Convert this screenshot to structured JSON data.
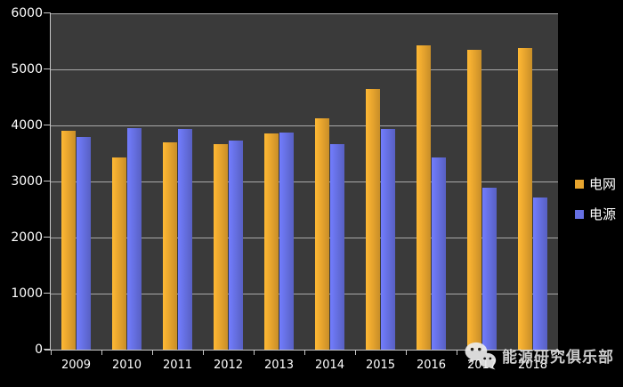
{
  "chart_data": {
    "type": "bar",
    "title": "",
    "xlabel": "",
    "ylabel": "",
    "categories": [
      "2009",
      "2010",
      "2011",
      "2012",
      "2013",
      "2014",
      "2015",
      "2016",
      "2017",
      "2018"
    ],
    "series": [
      {
        "name": "电网",
        "color": "#E8A52E",
        "values": [
          3900,
          3430,
          3700,
          3660,
          3860,
          4120,
          4650,
          5430,
          5350,
          5380
        ]
      },
      {
        "name": "电源",
        "color": "#6670E3",
        "values": [
          3800,
          3960,
          3930,
          3730,
          3870,
          3660,
          3940,
          3430,
          2890,
          2710
        ]
      }
    ],
    "ylim": [
      0,
      6000
    ],
    "yticks": [
      0,
      1000,
      2000,
      3000,
      4000,
      5000,
      6000
    ],
    "grid": true,
    "legend_position": "right",
    "colors": {
      "page_bg": "#000000",
      "plot_bg": "#3A3A3A",
      "gridline": "#BDBDBD",
      "axis_text": "#FFFFFF"
    }
  },
  "watermark": {
    "text": "能源研究俱乐部",
    "icon": "wechat-icon"
  }
}
